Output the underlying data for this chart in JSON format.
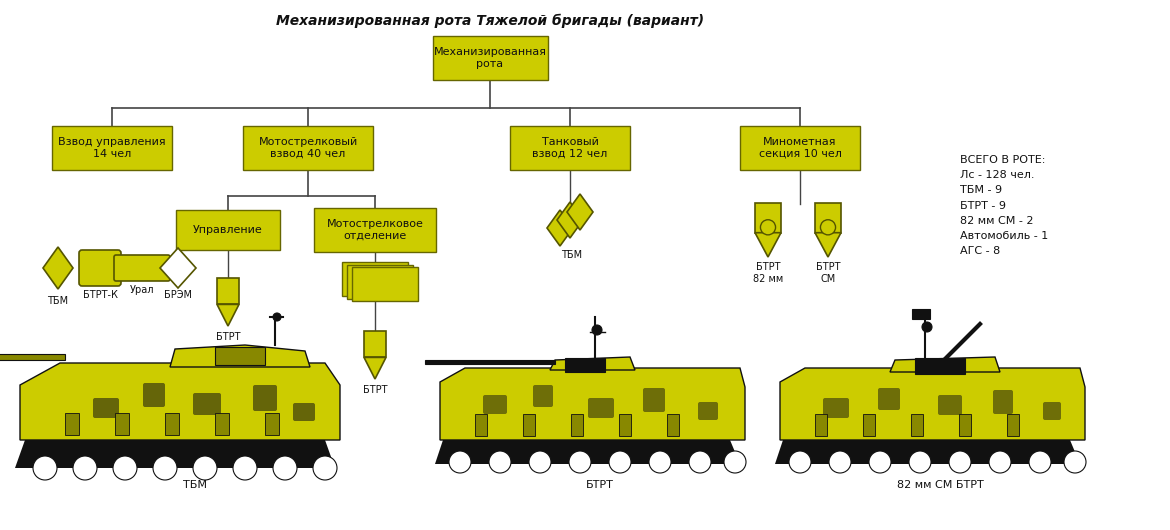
{
  "title": "Механизированная рота Тяжелой бригады (вариант)",
  "bg_color": "#ffffff",
  "box_fill": "#cccc00",
  "box_edge": "#666600",
  "sym_fill": "#cccc00",
  "sym_edge": "#555500",
  "line_color": "#444444",
  "text_color": "#111111",
  "stats_text": "ВСЕГО В РОТЕ:\nЛс - 128 чел.\nТБМ - 9\nБТРТ - 9\n82 мм СМ - 2\nАвтомобиль - 1\nАГС - 8",
  "vehicle_labels": [
    "ТБМ",
    "БТРТ",
    "82 мм СМ БТРТ"
  ],
  "yellow": "#cccc00",
  "black": "#111111",
  "dark_yellow": "#888800",
  "camouflage_dark": "#333300"
}
